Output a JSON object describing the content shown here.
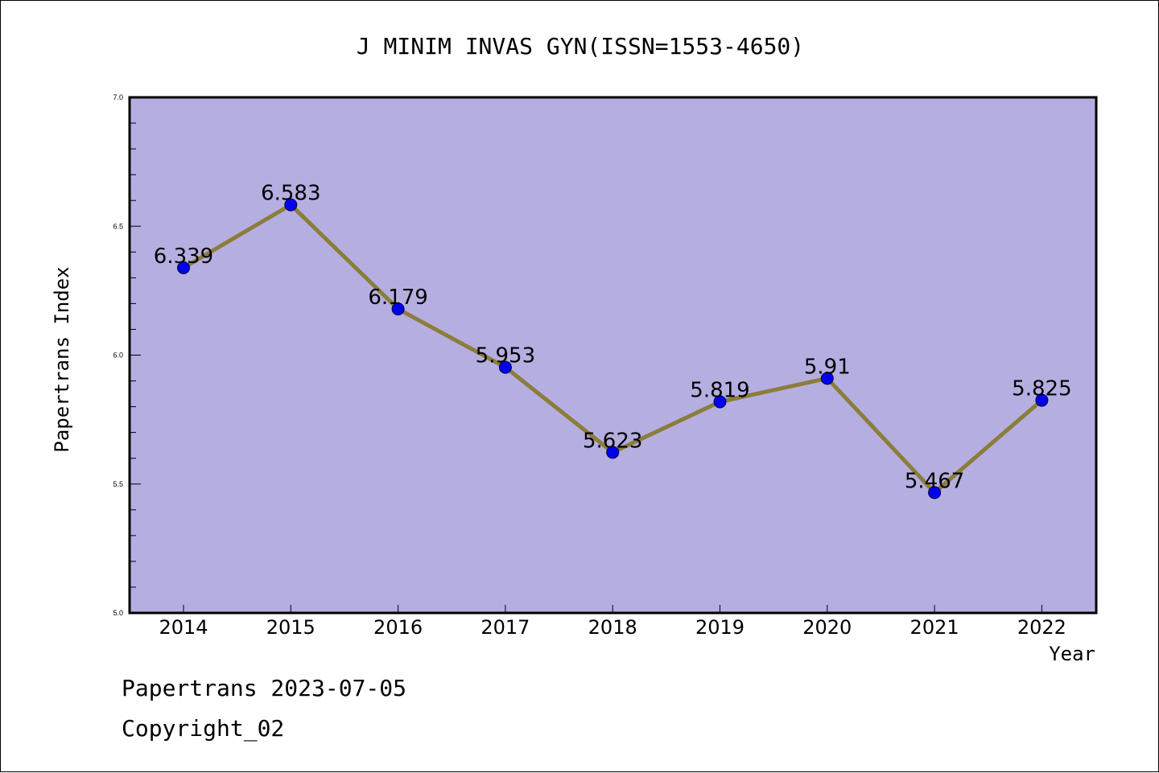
{
  "footer": {
    "line1": "Papertrans 2023-07-05",
    "line2": "Copyright_02"
  },
  "colors": {
    "plot_background": "#b5aee1",
    "line": "#8b7d3a",
    "marker": "#0000ee"
  },
  "chart_data": {
    "type": "line",
    "title": "J MINIM INVAS GYN(ISSN=1553-4650)",
    "xlabel": "Year",
    "ylabel": "Papertrans Index",
    "categories": [
      "2014",
      "2015",
      "2016",
      "2017",
      "2018",
      "2019",
      "2020",
      "2021",
      "2022"
    ],
    "series": [
      {
        "values": [
          6.339,
          6.583,
          6.179,
          5.953,
          5.623,
          5.819,
          5.91,
          5.467,
          5.825
        ],
        "labels": [
          "6.339",
          "6.583",
          "6.179",
          "5.953",
          "5.623",
          "5.819",
          "5.91",
          "5.467",
          "5.825"
        ]
      }
    ],
    "ylim": [
      5.0,
      7.0
    ],
    "yticks": [
      "5.0",
      "5.5",
      "6.0",
      "6.5",
      "7.0"
    ],
    "grid": false,
    "markers": "circle"
  }
}
